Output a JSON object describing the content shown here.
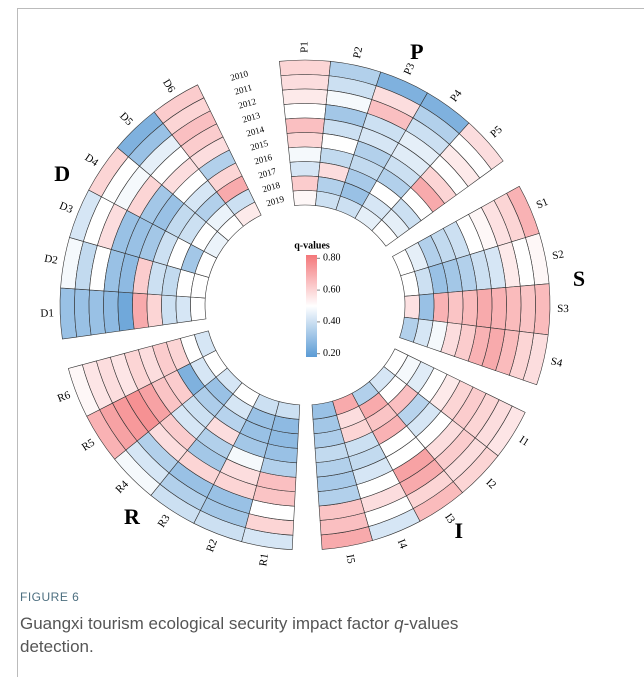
{
  "chart_data": {
    "type": "circular_heatmap",
    "years": [
      2010,
      2011,
      2012,
      2013,
      2014,
      2015,
      2016,
      2017,
      2018,
      2019
    ],
    "groups": [
      {
        "name": "P",
        "factors": [
          {
            "name": "P1",
            "values": [
              0.6,
              0.58,
              0.55,
              0.5,
              0.65,
              0.6,
              0.48,
              0.42,
              0.62,
              0.52
            ]
          },
          {
            "name": "P2",
            "values": [
              0.35,
              0.4,
              0.48,
              0.32,
              0.4,
              0.5,
              0.38,
              0.58,
              0.35,
              0.4
            ]
          },
          {
            "name": "P3",
            "values": [
              0.25,
              0.58,
              0.65,
              0.4,
              0.42,
              0.35,
              0.38,
              0.33,
              0.3,
              0.4
            ]
          },
          {
            "name": "P4",
            "values": [
              0.25,
              0.35,
              0.4,
              0.45,
              0.44,
              0.4,
              0.35,
              0.5,
              0.42,
              0.45
            ]
          },
          {
            "name": "P5",
            "values": [
              0.58,
              0.5,
              0.55,
              0.5,
              0.6,
              0.7,
              0.5,
              0.4,
              0.45,
              0.5
            ]
          }
        ]
      },
      {
        "name": "S",
        "factors": [
          {
            "name": "S1",
            "values": [
              0.68,
              0.6,
              0.57,
              0.52,
              0.5,
              0.4,
              0.38,
              0.35,
              0.45,
              0.5
            ]
          },
          {
            "name": "S2",
            "values": [
              0.52,
              0.5,
              0.55,
              0.42,
              0.4,
              0.35,
              0.32,
              0.3,
              0.4,
              0.5
            ]
          },
          {
            "name": "S3",
            "values": [
              0.66,
              0.64,
              0.66,
              0.68,
              0.7,
              0.66,
              0.64,
              0.68,
              0.3,
              0.57
            ]
          },
          {
            "name": "S4",
            "values": [
              0.58,
              0.6,
              0.66,
              0.7,
              0.68,
              0.62,
              0.58,
              0.48,
              0.42,
              0.35
            ]
          }
        ]
      },
      {
        "name": "I",
        "factors": [
          {
            "name": "I1",
            "values": [
              0.56,
              0.58,
              0.6,
              0.62,
              0.6,
              0.55,
              0.5,
              0.44,
              0.48,
              0.5
            ]
          },
          {
            "name": "I2",
            "values": [
              0.6,
              0.58,
              0.62,
              0.58,
              0.5,
              0.42,
              0.36,
              0.65,
              0.5,
              0.42
            ]
          },
          {
            "name": "I3",
            "values": [
              0.66,
              0.6,
              0.7,
              0.72,
              0.5,
              0.5,
              0.68,
              0.64,
              0.7,
              0.35
            ]
          },
          {
            "name": "I4",
            "values": [
              0.42,
              0.5,
              0.58,
              0.5,
              0.42,
              0.38,
              0.4,
              0.6,
              0.58,
              0.7
            ]
          },
          {
            "name": "I5",
            "values": [
              0.7,
              0.65,
              0.64,
              0.35,
              0.33,
              0.35,
              0.38,
              0.34,
              0.32,
              0.3
            ]
          }
        ]
      },
      {
        "name": "R",
        "factors": [
          {
            "name": "R1",
            "values": [
              0.42,
              0.6,
              0.5,
              0.64,
              0.65,
              0.35,
              0.3,
              0.28,
              0.28,
              0.4
            ]
          },
          {
            "name": "R2",
            "values": [
              0.4,
              0.32,
              0.3,
              0.6,
              0.58,
              0.48,
              0.32,
              0.3,
              0.3,
              0.4
            ]
          },
          {
            "name": "R3",
            "values": [
              0.4,
              0.35,
              0.3,
              0.6,
              0.32,
              0.35,
              0.58,
              0.36,
              0.42,
              0.5
            ]
          },
          {
            "name": "R4",
            "values": [
              0.48,
              0.42,
              0.35,
              0.58,
              0.62,
              0.42,
              0.4,
              0.34,
              0.3,
              0.42
            ]
          },
          {
            "name": "R5",
            "values": [
              0.68,
              0.72,
              0.74,
              0.76,
              0.72,
              0.64,
              0.62,
              0.25,
              0.42,
              0.5
            ]
          },
          {
            "name": "R6",
            "values": [
              0.52,
              0.56,
              0.58,
              0.56,
              0.6,
              0.58,
              0.62,
              0.6,
              0.5,
              0.42
            ]
          }
        ]
      },
      {
        "name": "D",
        "factors": [
          {
            "name": "D1",
            "values": [
              0.3,
              0.3,
              0.3,
              0.28,
              0.22,
              0.7,
              0.6,
              0.4,
              0.42,
              0.5
            ]
          },
          {
            "name": "D2",
            "values": [
              0.48,
              0.38,
              0.5,
              0.3,
              0.28,
              0.62,
              0.4,
              0.38,
              0.5,
              0.5
            ]
          },
          {
            "name": "D3",
            "values": [
              0.42,
              0.5,
              0.58,
              0.3,
              0.3,
              0.32,
              0.4,
              0.5,
              0.32,
              0.5
            ]
          },
          {
            "name": "D4",
            "values": [
              0.6,
              0.5,
              0.48,
              0.6,
              0.32,
              0.3,
              0.38,
              0.4,
              0.5,
              0.46
            ]
          },
          {
            "name": "D5",
            "values": [
              0.25,
              0.3,
              0.45,
              0.5,
              0.58,
              0.5,
              0.42,
              0.35,
              0.46,
              0.5
            ]
          },
          {
            "name": "D6",
            "values": [
              0.62,
              0.6,
              0.65,
              0.62,
              0.58,
              0.35,
              0.6,
              0.7,
              0.4,
              0.55
            ]
          }
        ]
      }
    ],
    "legend_title": "q-values",
    "clim": [
      0.18,
      0.82
    ],
    "cmid": 0.5,
    "colorbar_ticks": [
      {
        "value": 0.2,
        "label": "0.20"
      },
      {
        "value": 0.4,
        "label": "0.40"
      },
      {
        "value": 0.6,
        "label": "0.60"
      },
      {
        "value": 0.8,
        "label": "0.80"
      }
    ],
    "colors": {
      "low": "#5b9bd5",
      "mid": "#ffffff",
      "high": "#f4777a"
    }
  },
  "caption": {
    "label": "FIGURE 6",
    "text_before": "Guangxi tourism ecological security impact factor ",
    "symbol": "q",
    "text_after": "-values detection."
  }
}
